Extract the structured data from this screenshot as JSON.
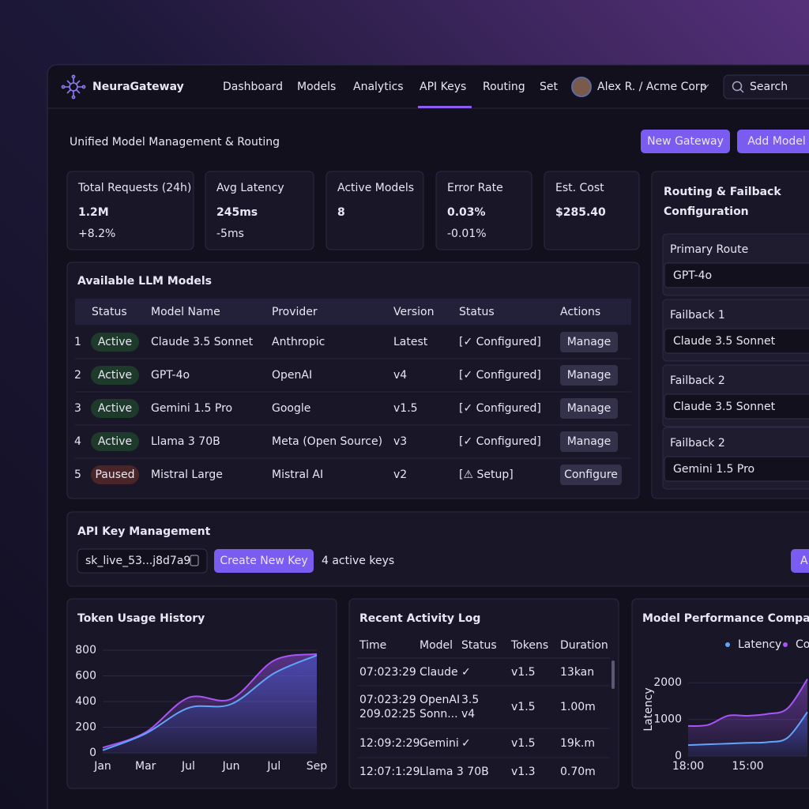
{
  "nav": {
    "brand": "NeuraGateway",
    "items": [
      "Dashboard",
      "Models",
      "Analytics",
      "API Keys",
      "Routing",
      "Set"
    ],
    "active": 3,
    "user": "Alex R. / Acme Corp",
    "search": "Search"
  },
  "header": {
    "title": "Unified Model Management & Routing",
    "buttons": [
      "New Gateway",
      "Add Model"
    ]
  },
  "stats": [
    {
      "label": "Total Requests (24h)",
      "value": "1.2M",
      "delta": "+8.2%"
    },
    {
      "label": "Avg Latency",
      "value": "245ms",
      "delta": "-5ms"
    },
    {
      "label": "Active Models",
      "value": "8"
    },
    {
      "label": "Error Rate",
      "value": "0.03%",
      "delta": "-0.01%"
    },
    {
      "label": "Est. Cost",
      "value": "$285.40"
    }
  ],
  "models": {
    "title": "Available LLM Models",
    "headers": [
      "Status",
      "Model Name",
      "Provider",
      "Version",
      "Status",
      "Actions"
    ],
    "rows": [
      [
        "1",
        "Active",
        "Claude 3.5 Sonnet",
        "Anthropic",
        "Latest",
        "[✓ Configured]",
        "Manage"
      ],
      [
        "2",
        "Active",
        "GPT-4o",
        "OpenAI",
        "v4",
        "[✓ Configured]",
        "Manage"
      ],
      [
        "3",
        "Active",
        "Gemini 1.5 Pro",
        "Google",
        "v1.5",
        "[✓ Configured]",
        "Manage"
      ],
      [
        "4",
        "Active",
        "Llama 3 70B",
        "Meta (Open Source)",
        "v3",
        "[✓ Configured]",
        "Manage"
      ],
      [
        "5",
        "Paused",
        "Mistral Large",
        "Mistral AI",
        "v2",
        "[⚠ Setup]",
        "Configure"
      ]
    ]
  },
  "routing": {
    "title": [
      "Routing & Failback",
      "Configuration"
    ],
    "routes": [
      {
        "label": "Primary Route",
        "value": "GPT-4o"
      },
      {
        "label": "Failback 1",
        "value": "Claude 3.5 Sonnet"
      },
      {
        "label": "Failback 2",
        "value": "Claude 3.5 Sonnet"
      },
      {
        "label": "Failback 2",
        "value": "Gemini 1.5 Pro"
      }
    ]
  },
  "api_keys": {
    "title": "API Key Management",
    "key": "sk_live_53...j8d7a9",
    "button": "Create New Key",
    "count": "4 active keys",
    "edge_button": "A"
  },
  "activity": {
    "title": "Recent Activity Log",
    "headers": [
      "Time",
      "Model",
      "Status",
      "Tokens",
      "Duration"
    ],
    "rows": [
      [
        [
          "07:023:29"
        ],
        [
          "Claude"
        ],
        [
          "✓"
        ],
        [
          "v1.5"
        ],
        [
          "13kan"
        ]
      ],
      [
        [
          "07:023:29",
          "209.02:25"
        ],
        [
          "OpenAI",
          "Sonn..."
        ],
        [
          "3.5",
          "v4"
        ],
        [
          "v1.5"
        ],
        [
          "1.00m"
        ]
      ],
      [
        [
          "12:09:2:29"
        ],
        [
          "Gemini"
        ],
        [
          "✓"
        ],
        [
          "v1.5"
        ],
        [
          "19k.m"
        ]
      ],
      [
        [
          "12:07:1:29"
        ],
        [
          "Llama 3 70B"
        ],
        [],
        [
          "v1.3"
        ],
        [
          "0.70m"
        ]
      ]
    ]
  },
  "chart_data": [
    {
      "type": "line",
      "title": "Token Usage History",
      "categories": [
        "Jan",
        "Mar",
        "Jul",
        "Jun",
        "Jul",
        "Sep"
      ],
      "series": [
        {
          "color": "#a855f7",
          "values": [
            40,
            160,
            430,
            420,
            720,
            770
          ]
        },
        {
          "color": "#60a5fa",
          "values": [
            20,
            150,
            350,
            380,
            620,
            760
          ]
        }
      ],
      "ylim": [
        0,
        800
      ],
      "yticks": [
        0,
        200,
        400,
        600,
        800
      ],
      "grid": true
    },
    {
      "type": "area",
      "title": "Model Performance Compari",
      "y_label": "Latency",
      "categories": [
        "18:00",
        null,
        null,
        "15:00",
        null,
        null,
        null
      ],
      "series": [
        {
          "name": "Latency",
          "color": "#60a5fa",
          "values": [
            300,
            320,
            340,
            360,
            380,
            500,
            1200
          ]
        },
        {
          "name": "Co",
          "color": "#a855f7",
          "values": [
            820,
            850,
            1100,
            1100,
            1150,
            1300,
            2100
          ]
        }
      ],
      "ylim": [
        0,
        2500
      ],
      "yticks": [
        0,
        1000,
        2000
      ],
      "grid": true
    }
  ]
}
